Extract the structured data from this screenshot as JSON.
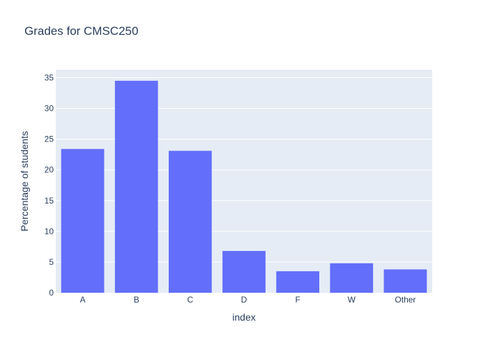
{
  "chart_data": {
    "type": "bar",
    "title": "Grades for CMSC250",
    "xlabel": "index",
    "ylabel": "Percentage of students",
    "categories": [
      "A",
      "B",
      "C",
      "D",
      "F",
      "W",
      "Other"
    ],
    "values": [
      23.4,
      34.5,
      23.1,
      6.8,
      3.5,
      4.8,
      3.8
    ],
    "ylim": [
      0,
      36.3
    ],
    "yticks": [
      0,
      5,
      10,
      15,
      20,
      25,
      30,
      35
    ],
    "grid": true,
    "legend": "none",
    "colors": {
      "bar": "#636efa",
      "plot_bg": "#e5ecf6",
      "grid": "#ffffff",
      "text": "#2a3f5f"
    }
  }
}
